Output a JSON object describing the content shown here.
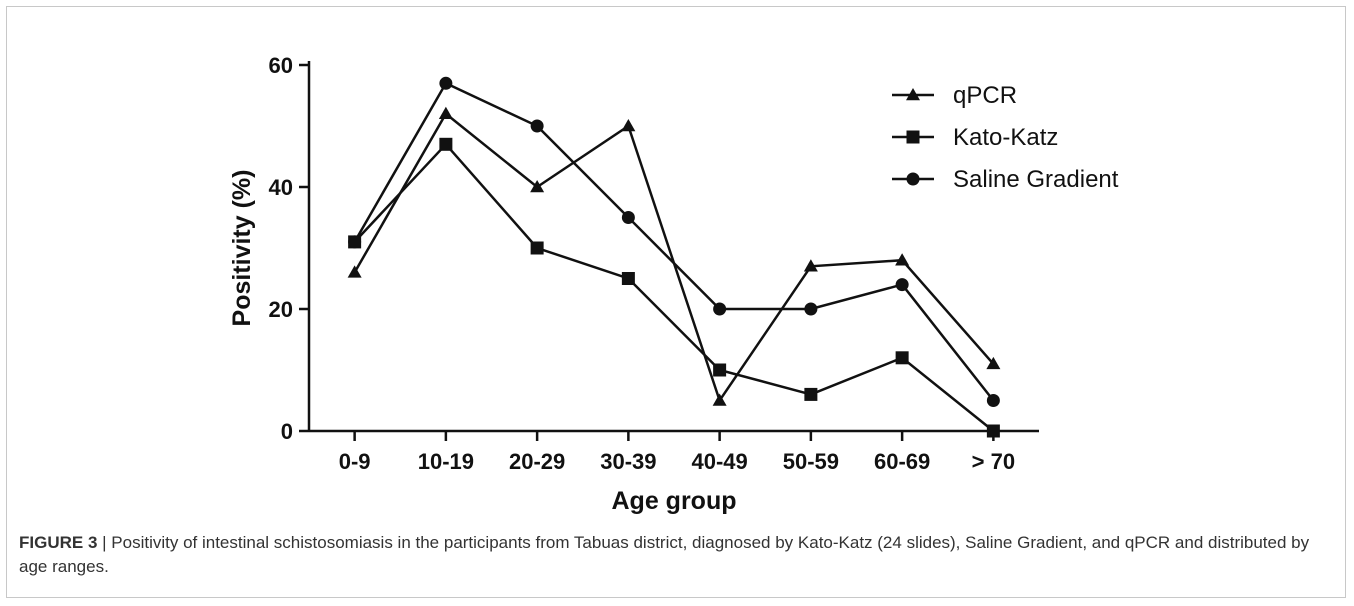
{
  "figure": {
    "caption_label": "FIGURE 3",
    "caption_sep": " | ",
    "caption_text": "Positivity of intestinal schistosomiasis in the participants from Tabuas district, diagnosed by Kato-Katz (24 slides), Saline Gradient, and qPCR and distributed by age ranges."
  },
  "chart_data": {
    "type": "line",
    "title": "",
    "xlabel": "Age group",
    "ylabel": "Positivity (%)",
    "categories": [
      "0-9",
      "10-19",
      "20-29",
      "30-39",
      "40-49",
      "50-59",
      "60-69",
      "> 70"
    ],
    "ylim": [
      0,
      60
    ],
    "yticks": [
      0,
      20,
      40,
      60
    ],
    "grid": false,
    "legend_position": "top-right",
    "series": [
      {
        "name": "qPCR",
        "marker": "triangle",
        "values": [
          26,
          52,
          40,
          50,
          5,
          27,
          28,
          11
        ]
      },
      {
        "name": "Kato-Katz",
        "marker": "square",
        "values": [
          31,
          47,
          30,
          25,
          10,
          6,
          12,
          0
        ]
      },
      {
        "name": "Saline Gradient",
        "marker": "circle",
        "values": [
          31,
          57,
          50,
          35,
          20,
          20,
          24,
          5
        ]
      }
    ],
    "line_color": "#111111"
  }
}
